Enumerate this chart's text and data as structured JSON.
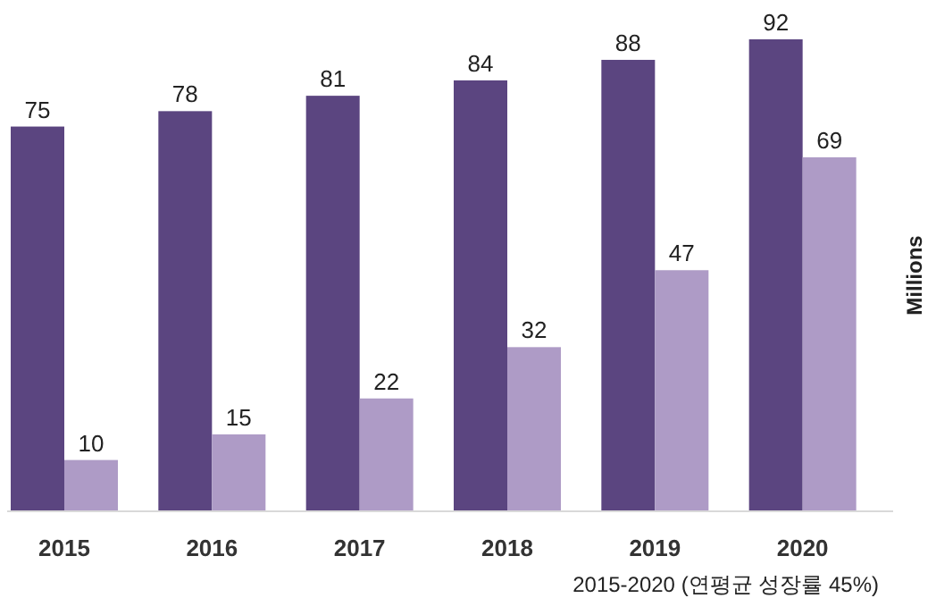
{
  "chart_data": {
    "type": "bar",
    "categories": [
      "2015",
      "2016",
      "2017",
      "2018",
      "2019",
      "2020"
    ],
    "series": [
      {
        "color": "#5b4580",
        "values": [
          75,
          78,
          81,
          84,
          88,
          92
        ]
      },
      {
        "color": "#ae9bc6",
        "values": [
          10,
          15,
          22,
          32,
          47,
          69
        ]
      }
    ],
    "ylabel": "Millions",
    "data_labels": true,
    "grid": false,
    "annotations": [
      "2015-2020 (연평균 성장률 45%)"
    ]
  }
}
